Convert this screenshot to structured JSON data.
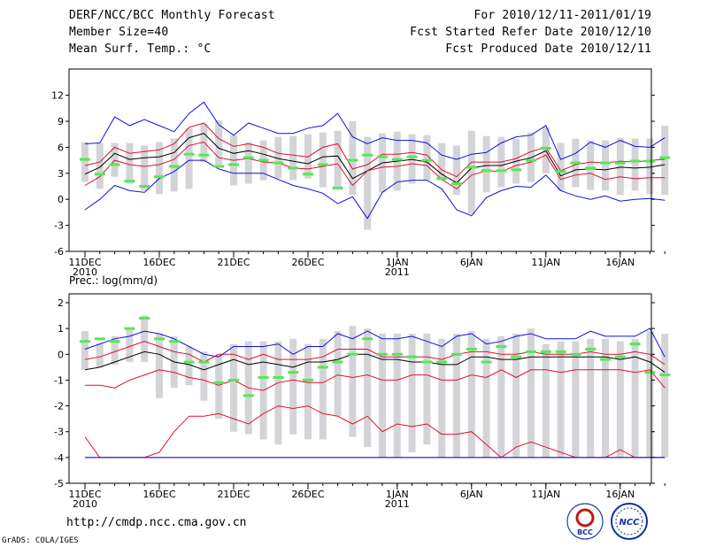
{
  "header": {
    "left_line1": "DERF/NCC/BCC Monthly Forecast",
    "left_line2": "Member Size=40",
    "left_line3": "Mean Surf. Temp.: °C",
    "right_line1": "For 2010/12/11-2011/01/19",
    "right_line2": "Fcst Started Refer Date 2010/12/10",
    "right_line3": "Fcst Produced Date 2010/12/11"
  },
  "footer": {
    "url": "http://cmdp.ncc.cma.gov.cn",
    "credit": "GrADS: COLA/IGES",
    "logo_left_text": "BCC",
    "logo_right_text": "NCC"
  },
  "colors": {
    "box": "#d4d4d8",
    "obs": "#55e855",
    "mean": "#000000",
    "inner": "#e0102a",
    "outer": "#1010dd"
  },
  "chart_data": [
    {
      "type": "box",
      "title": "Mean Surf. Temp.: °C",
      "x": [
        0,
        1,
        2,
        3,
        4,
        5,
        6,
        7,
        8,
        9,
        10,
        11,
        12,
        13,
        14,
        15,
        16,
        17,
        18,
        19,
        20,
        21,
        22,
        23,
        24,
        25,
        26,
        27,
        28,
        29,
        30,
        31,
        32,
        33,
        34,
        35,
        36,
        37,
        38,
        39
      ],
      "xticks": [
        {
          "x": 0,
          "label": "11DEC",
          "sub": "2010"
        },
        {
          "x": 5,
          "label": "16DEC",
          "sub": ""
        },
        {
          "x": 10,
          "label": "21DEC",
          "sub": ""
        },
        {
          "x": 15,
          "label": "26DEC",
          "sub": ""
        },
        {
          "x": 21,
          "label": "1JAN",
          "sub": "2011"
        },
        {
          "x": 26,
          "label": "6JAN",
          "sub": ""
        },
        {
          "x": 31,
          "label": "11JAN",
          "sub": ""
        },
        {
          "x": 36,
          "label": "16JAN",
          "sub": ""
        }
      ],
      "ylim": [
        -6,
        14
      ],
      "yticks": [
        -6,
        -3,
        0,
        3,
        6,
        9,
        12
      ],
      "box_low": [
        2.0,
        1.2,
        2.6,
        1.8,
        1.0,
        0.6,
        0.9,
        1.2,
        4.3,
        4.0,
        1.6,
        1.8,
        2.2,
        2.4,
        2.2,
        2.4,
        1.4,
        1.4,
        0.5,
        -3.5,
        0.8,
        1.0,
        1.8,
        2.2,
        2.2,
        0.5,
        -1.7,
        0.8,
        1.4,
        1.8,
        2.0,
        3.0,
        1.0,
        1.4,
        1.1,
        1.0,
        0.5,
        1.0,
        0.6,
        0.5
      ],
      "box_high": [
        6.6,
        6.5,
        6.5,
        6.5,
        6.2,
        6.6,
        7.0,
        8.2,
        8.7,
        9.1,
        7.4,
        6.6,
        6.8,
        7.2,
        7.3,
        7.5,
        7.7,
        7.9,
        9.0,
        7.2,
        7.6,
        7.8,
        7.5,
        7.4,
        6.5,
        6.2,
        7.9,
        7.3,
        7.2,
        7.0,
        7.7,
        8.3,
        6.5,
        7.0,
        6.8,
        6.8,
        7.1,
        7.0,
        7.0,
        8.5
      ],
      "obs": [
        4.6,
        2.9,
        4.0,
        2.1,
        1.5,
        2.6,
        3.8,
        5.2,
        5.1,
        3.8,
        4.0,
        4.8,
        4.5,
        4.2,
        3.6,
        2.9,
        4.0,
        1.3,
        4.5,
        5.1,
        4.9,
        4.6,
        4.9,
        4.5,
        2.4,
        1.8,
        3.7,
        3.3,
        3.3,
        3.4,
        4.5,
        5.9,
        3.2,
        4.2,
        3.6,
        4.2,
        4.2,
        4.4,
        4.4,
        4.8
      ],
      "series": [
        {
          "name": "outer-upper",
          "role": "outer",
          "values": [
            6.4,
            6.5,
            9.5,
            8.5,
            9.2,
            8.5,
            7.8,
            9.9,
            11.2,
            8.6,
            7.4,
            8.8,
            8.2,
            7.6,
            7.6,
            8.2,
            8.5,
            9.9,
            7.2,
            6.4,
            7.1,
            6.8,
            6.8,
            6.5,
            5.1,
            4.6,
            5.2,
            5.4,
            6.5,
            7.2,
            7.4,
            8.5,
            4.6,
            5.3,
            6.6,
            6.0,
            6.8,
            6.1,
            6.0,
            7.1
          ]
        },
        {
          "name": "inner-upper",
          "role": "inner",
          "values": [
            3.9,
            4.3,
            6.0,
            5.3,
            5.5,
            5.7,
            6.4,
            8.3,
            8.8,
            7.0,
            6.1,
            6.4,
            6.0,
            5.3,
            5.1,
            4.9,
            6.0,
            6.4,
            3.5,
            4.0,
            5.2,
            5.2,
            5.4,
            5.1,
            3.4,
            2.6,
            4.3,
            4.3,
            4.3,
            4.7,
            5.5,
            6.0,
            3.3,
            4.0,
            4.3,
            4.2,
            4.4,
            4.3,
            4.5,
            4.6
          ]
        },
        {
          "name": "mean",
          "role": "mean",
          "values": [
            2.9,
            3.7,
            5.3,
            4.6,
            4.8,
            4.9,
            5.4,
            7.1,
            7.6,
            5.9,
            5.3,
            5.6,
            5.2,
            4.7,
            4.4,
            4.1,
            4.9,
            5.0,
            2.4,
            3.3,
            4.2,
            4.4,
            4.6,
            4.3,
            2.9,
            1.9,
            3.6,
            3.9,
            3.9,
            4.4,
            4.8,
            5.6,
            2.7,
            3.4,
            3.5,
            3.4,
            3.7,
            3.6,
            3.7,
            4.0
          ]
        },
        {
          "name": "inner-lower",
          "role": "inner",
          "values": [
            1.6,
            2.6,
            4.5,
            4.0,
            3.8,
            4.0,
            4.6,
            6.2,
            6.6,
            4.8,
            4.5,
            4.7,
            4.3,
            4.2,
            3.6,
            3.5,
            3.8,
            4.1,
            1.6,
            3.3,
            3.7,
            3.8,
            4.1,
            3.9,
            2.3,
            1.2,
            2.8,
            3.3,
            3.2,
            3.9,
            4.3,
            5.1,
            2.3,
            2.8,
            3.0,
            2.3,
            2.6,
            2.4,
            2.5,
            2.5
          ]
        },
        {
          "name": "outer-lower",
          "role": "outer",
          "values": [
            -1.2,
            0.0,
            1.6,
            1.0,
            0.8,
            2.4,
            3.2,
            4.5,
            4.5,
            3.5,
            3.0,
            3.0,
            3.0,
            2.3,
            1.6,
            1.2,
            0.7,
            -0.5,
            0.3,
            -2.2,
            0.8,
            2.0,
            2.2,
            2.2,
            1.2,
            -1.2,
            -1.9,
            0.2,
            1.0,
            1.5,
            1.4,
            2.8,
            1.0,
            0.4,
            0.0,
            0.4,
            -0.2,
            0.0,
            0.1,
            -0.1
          ]
        }
      ]
    },
    {
      "type": "box",
      "title": "Prec.: log(mm/d)",
      "x": [
        0,
        1,
        2,
        3,
        4,
        5,
        6,
        7,
        8,
        9,
        10,
        11,
        12,
        13,
        14,
        15,
        16,
        17,
        18,
        19,
        20,
        21,
        22,
        23,
        24,
        25,
        26,
        27,
        28,
        29,
        30,
        31,
        32,
        33,
        34,
        35,
        36,
        37,
        38,
        39
      ],
      "xticks": [
        {
          "x": 0,
          "label": "11DEC",
          "sub": "2010"
        },
        {
          "x": 5,
          "label": "16DEC",
          "sub": ""
        },
        {
          "x": 10,
          "label": "21DEC",
          "sub": ""
        },
        {
          "x": 15,
          "label": "26DEC",
          "sub": ""
        },
        {
          "x": 21,
          "label": "1JAN",
          "sub": "2011"
        },
        {
          "x": 26,
          "label": "6JAN",
          "sub": ""
        },
        {
          "x": 31,
          "label": "11JAN",
          "sub": ""
        },
        {
          "x": 36,
          "label": "16JAN",
          "sub": ""
        }
      ],
      "ylim": [
        -5,
        2
      ],
      "yticks": [
        -5,
        -4,
        -3,
        -2,
        -1,
        0,
        1,
        2
      ],
      "box_low": [
        -0.6,
        -0.5,
        -0.4,
        -0.3,
        -0.3,
        -1.7,
        -1.3,
        -1.2,
        -1.8,
        -2.5,
        -3.0,
        -3.1,
        -3.3,
        -3.5,
        -3.1,
        -3.3,
        -3.3,
        -2.4,
        -3.2,
        -3.6,
        -4.0,
        -4.0,
        -3.8,
        -3.5,
        -4.0,
        -4.0,
        -4.0,
        -4.0,
        -4.0,
        -4.0,
        -4.0,
        -4.0,
        -4.0,
        -4.0,
        -4.0,
        -4.0,
        -4.0,
        -4.0,
        -4.0,
        -4.0
      ],
      "box_high": [
        0.9,
        0.4,
        0.7,
        1.0,
        1.5,
        0.8,
        0.7,
        0.3,
        0.1,
        0.0,
        0.4,
        0.5,
        0.5,
        0.5,
        0.6,
        0.4,
        0.6,
        0.9,
        1.1,
        1.0,
        0.8,
        0.8,
        0.8,
        0.8,
        0.6,
        0.8,
        0.9,
        0.6,
        0.7,
        0.8,
        1.0,
        0.4,
        0.5,
        0.5,
        0.6,
        0.6,
        0.5,
        0.6,
        0.9,
        0.8
      ],
      "obs": [
        0.5,
        0.6,
        0.5,
        1.0,
        1.4,
        0.6,
        0.5,
        -0.3,
        -0.3,
        -1.1,
        -1.0,
        -1.6,
        -0.9,
        -0.9,
        -0.7,
        -1.0,
        -0.5,
        -0.3,
        0.0,
        0.6,
        0.0,
        0.0,
        -0.1,
        -0.3,
        -0.3,
        0.0,
        0.2,
        -0.3,
        0.3,
        -0.1,
        0.1,
        0.1,
        0.1,
        0.0,
        0.2,
        -0.2,
        -0.1,
        0.4,
        -0.7,
        -0.8
      ],
      "series": [
        {
          "name": "outer-upper",
          "role": "outer",
          "values": [
            0.2,
            0.4,
            0.6,
            0.7,
            0.9,
            0.8,
            0.6,
            0.3,
            0.0,
            -0.1,
            0.3,
            0.3,
            0.3,
            0.4,
            0.0,
            0.3,
            0.3,
            0.8,
            0.6,
            0.9,
            0.6,
            0.6,
            0.7,
            0.5,
            0.3,
            0.7,
            0.8,
            0.4,
            0.5,
            0.7,
            0.8,
            0.6,
            0.6,
            0.6,
            0.9,
            0.7,
            0.7,
            0.7,
            1.0,
            -0.1
          ]
        },
        {
          "name": "mean",
          "role": "mean",
          "values": [
            -0.6,
            -0.5,
            -0.3,
            -0.1,
            0.1,
            0.0,
            -0.3,
            -0.4,
            -0.6,
            -0.4,
            -0.2,
            -0.4,
            -0.3,
            -0.4,
            -0.5,
            -0.3,
            -0.3,
            -0.2,
            0.0,
            0.0,
            -0.2,
            -0.2,
            -0.3,
            -0.3,
            -0.4,
            -0.4,
            -0.1,
            -0.1,
            -0.2,
            -0.2,
            -0.1,
            -0.1,
            -0.1,
            -0.1,
            -0.1,
            -0.1,
            -0.2,
            -0.1,
            -0.3,
            -0.7
          ]
        },
        {
          "name": "inner-upper",
          "role": "inner",
          "values": [
            -0.2,
            -0.1,
            0.1,
            0.3,
            0.5,
            0.3,
            0.1,
            0.0,
            -0.3,
            0.0,
            0.0,
            -0.2,
            0.0,
            -0.2,
            -0.2,
            -0.2,
            -0.1,
            0.2,
            0.2,
            0.2,
            -0.1,
            -0.1,
            -0.1,
            -0.1,
            -0.2,
            0.0,
            0.1,
            0.1,
            0.0,
            0.0,
            0.1,
            0.0,
            0.0,
            0.0,
            0.1,
            0.0,
            0.0,
            0.1,
            0.0,
            -0.4
          ]
        },
        {
          "name": "inner-lower",
          "role": "inner",
          "values": [
            -1.2,
            -1.2,
            -1.3,
            -1.0,
            -0.8,
            -0.6,
            -0.7,
            -0.9,
            -1.0,
            -1.2,
            -1.0,
            -1.3,
            -1.4,
            -1.1,
            -1.0,
            -1.1,
            -1.1,
            -0.8,
            -0.9,
            -0.8,
            -1.0,
            -1.0,
            -0.8,
            -0.8,
            -1.0,
            -1.0,
            -0.8,
            -0.9,
            -0.6,
            -0.9,
            -0.6,
            -0.6,
            -0.7,
            -0.6,
            -0.6,
            -0.6,
            -0.6,
            -0.7,
            -0.6,
            -1.3
          ]
        },
        {
          "name": "outer-lower-mid",
          "role": "inner",
          "values": [
            -4.0,
            -4.0,
            -4.0,
            -4.0,
            -4.0,
            -3.8,
            -3.0,
            -2.4,
            -2.4,
            -2.3,
            -2.5,
            -2.7,
            -2.3,
            -2.0,
            -2.1,
            -2.0,
            -2.3,
            -2.4,
            -2.7,
            -2.4,
            -3.0,
            -2.7,
            -2.8,
            -2.7,
            -3.1,
            -3.1,
            -3.0,
            -3.5,
            -4.0,
            -3.6,
            -3.4,
            -3.6,
            -3.8,
            -4.0,
            -4.0,
            -4.0,
            -3.7,
            -4.0,
            -4.0,
            -4.0
          ]
        },
        {
          "name": "outer-lower",
          "role": "inner",
          "values": [
            -3.2,
            -4.0,
            -4.0,
            -4.0,
            -4.0,
            -4.0,
            -4.0,
            -4.0,
            -4.0,
            -4.0,
            -4.0,
            -4.0,
            -4.0,
            -4.0,
            -4.0,
            -4.0,
            -4.0,
            -4.0,
            -4.0,
            -4.0,
            -4.0,
            -4.0,
            -4.0,
            -4.0,
            -4.0,
            -4.0,
            -4.0,
            -4.0,
            -4.0,
            -4.0,
            -4.0,
            -4.0,
            -4.0,
            -4.0,
            -4.0,
            -4.0,
            -4.0,
            -4.0,
            -4.0,
            -4.0
          ]
        },
        {
          "name": "floor",
          "role": "outer",
          "values": [
            -4.0,
            -4.0,
            -4.0,
            -4.0,
            -4.0,
            -4.0,
            -4.0,
            -4.0,
            -4.0,
            -4.0,
            -4.0,
            -4.0,
            -4.0,
            -4.0,
            -4.0,
            -4.0,
            -4.0,
            -4.0,
            -4.0,
            -4.0,
            -4.0,
            -4.0,
            -4.0,
            -4.0,
            -4.0,
            -4.0,
            -4.0,
            -4.0,
            -4.0,
            -4.0,
            -4.0,
            -4.0,
            -4.0,
            -4.0,
            -4.0,
            -4.0,
            -4.0,
            -4.0,
            -4.0,
            -4.0
          ]
        }
      ]
    }
  ]
}
